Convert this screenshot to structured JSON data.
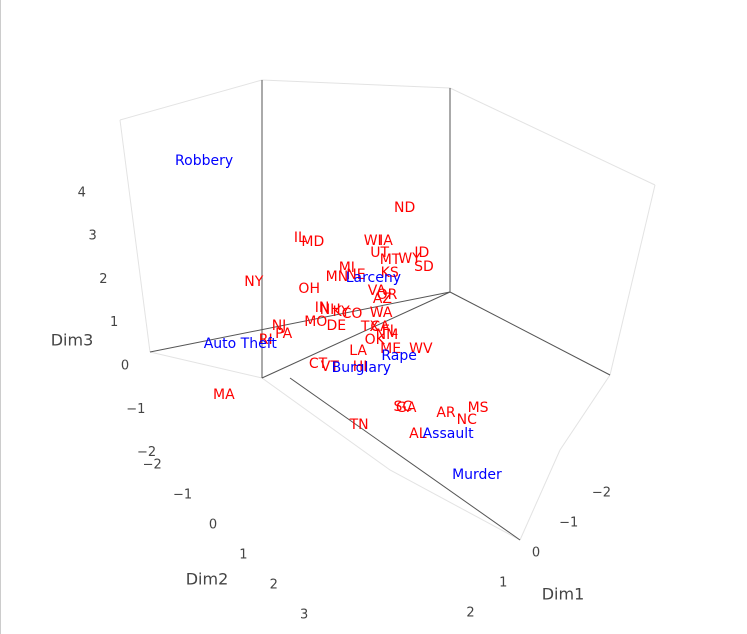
{
  "chart_data": {
    "type": "scatter3d",
    "x_title": "Dim1",
    "y_title": "Dim2",
    "z_title": "Dim3",
    "xticks": [
      {
        "value": -2,
        "label": "−2"
      },
      {
        "value": -1,
        "label": "−1"
      },
      0,
      1,
      2
    ],
    "yticks": [
      {
        "value": -2,
        "label": "−2"
      },
      {
        "value": -1,
        "label": "−1"
      },
      0,
      1,
      2,
      3
    ],
    "zticks": [
      {
        "value": -2,
        "label": "−2"
      },
      {
        "value": -1,
        "label": "−1"
      },
      0,
      1,
      2,
      3,
      4
    ],
    "series": [
      {
        "color": "#ff0000",
        "labels": [
          "ND",
          "IL",
          "MD",
          "WI",
          "IA",
          "UT",
          "ID",
          "MT",
          "WY",
          "SD",
          "NY",
          "MI",
          "MN",
          "NE",
          "KS",
          "OH",
          "VA",
          "AZ",
          "OR",
          "IN",
          "NH",
          "KY",
          "CO",
          "WA",
          "MO",
          "NJ",
          "PA",
          "RI",
          "DE",
          "TX",
          "CA",
          "FL",
          "OK",
          "NM",
          "LA",
          "ME",
          "WV",
          "CT",
          "VT",
          "HI",
          "MA",
          "TN",
          "SC",
          "GA",
          "AR",
          "MS",
          "NC",
          "AL"
        ],
        "x": [
          -2.17,
          -0.03,
          -0.17,
          -1.14,
          -1.35,
          -1.06,
          -1.73,
          -1.11,
          -1.44,
          -1.54,
          1.4,
          -0.3,
          0,
          -0.33,
          -0.9,
          0.63,
          -0.41,
          -0.37,
          -0.51,
          0.73,
          0.63,
          0.49,
          0.35,
          -0.13,
          1.05,
          1.7,
          1.75,
          2.13,
          0.79,
          0.27,
          0.11,
          0.02,
          0.4,
          0.13,
          0.84,
          0.29,
          -0.19,
          1.68,
          1.54,
          1.06,
          3.67,
          2.0,
          1.02,
          0.98,
          0.43,
          -0.16,
          0.21,
          1.21
        ],
        "y": [
          -1.9,
          -3.04,
          -2.76,
          -1.83,
          -1.62,
          -1.51,
          -0.84,
          -1.22,
          -0.93,
          -0.56,
          -3.0,
          -1.77,
          -1.77,
          -1.5,
          -1.0,
          -2.0,
          -0.89,
          -0.66,
          -0.66,
          -1.46,
          -1.3,
          -1.09,
          -0.88,
          -0.44,
          -1.32,
          -1.83,
          -1.62,
          -1.8,
          -0.92,
          -0.37,
          -0.21,
          0.01,
          -0.07,
          0.04,
          -0.14,
          0.34,
          0.82,
          -0.55,
          -0.31,
          0.17,
          -1.5,
          1.17,
          1.55,
          1.62,
          2.34,
          2.76,
          2.79,
          2.26
        ],
        "z": [
          0,
          0,
          0,
          0,
          0,
          0,
          0,
          0,
          0,
          0,
          0,
          0,
          0,
          0,
          0,
          0,
          0,
          0,
          0,
          0,
          0,
          0,
          0,
          0,
          0,
          0,
          0,
          0,
          0,
          0,
          0,
          0,
          0,
          0,
          0,
          0,
          0,
          0,
          0,
          0,
          0,
          0,
          0,
          0,
          0,
          0,
          0,
          0
        ]
      },
      {
        "color": "#0000ff",
        "labels": [
          "Robbery",
          "Larceny",
          "Auto Theft",
          "Rape",
          "Burglary",
          "Assault",
          "Murder"
        ],
        "x": [
          0.27,
          -0.56,
          2.6,
          0.27,
          1.06,
          0.73,
          0.92
        ],
        "y": [
          -5.9,
          -1.17,
          -2.13,
          0.6,
          0.21,
          2.74,
          3.91
        ],
        "z": [
          0,
          0,
          0,
          0,
          0,
          0,
          0
        ]
      }
    ]
  }
}
